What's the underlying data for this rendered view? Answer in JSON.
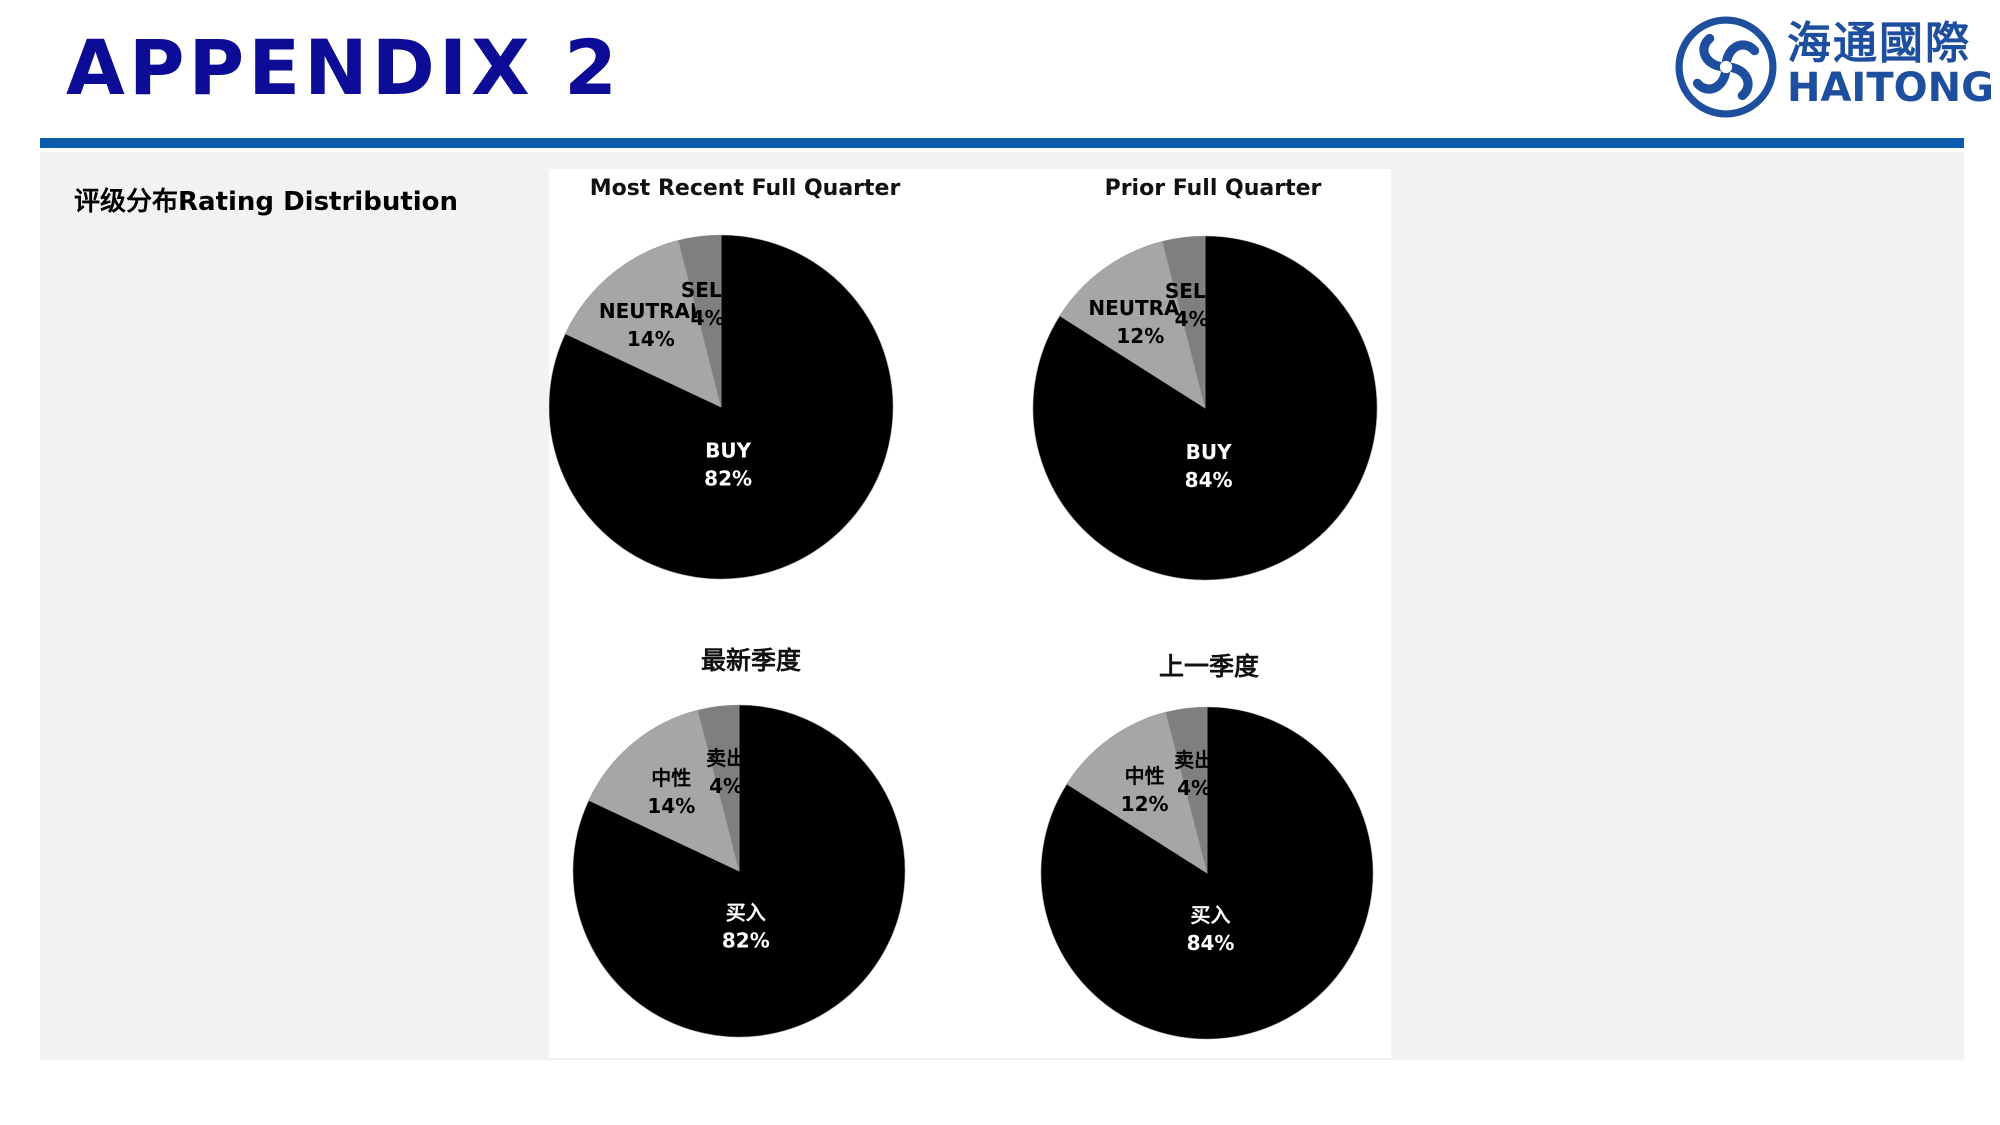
{
  "header": {
    "title": "APPENDIX 2",
    "logo": {
      "name_cn": "海通國際",
      "name_en": "HAITONG",
      "emblem": "haitong-swirl-emblem"
    },
    "brand_color": "#0c0c96",
    "accent_color": "#0b5cad"
  },
  "section": {
    "label": "评级分布Rating Distribution"
  },
  "chart_data": [
    {
      "type": "pie",
      "title": "Most Recent Full Quarter",
      "categories": [
        "BUY",
        "NEUTRAL",
        "SELL"
      ],
      "values": [
        82,
        14,
        4
      ],
      "value_labels": [
        "82%",
        "14%",
        "4%"
      ],
      "colors": [
        "#000000",
        "#a6a6a6",
        "#7f7f7f"
      ],
      "label_colors": [
        "#ffffff",
        "#000000",
        "#000000"
      ],
      "legend": "none"
    },
    {
      "type": "pie",
      "title": "Prior Full Quarter",
      "categories": [
        "BUY",
        "NEUTRAL",
        "SELL"
      ],
      "values": [
        84,
        12,
        4
      ],
      "value_labels": [
        "84%",
        "12%",
        "4%"
      ],
      "colors": [
        "#000000",
        "#a6a6a6",
        "#7f7f7f"
      ],
      "label_colors": [
        "#ffffff",
        "#000000",
        "#000000"
      ],
      "legend": "none"
    },
    {
      "type": "pie",
      "title": "最新季度",
      "categories": [
        "买入",
        "中性",
        "卖出"
      ],
      "values": [
        82,
        14,
        4
      ],
      "value_labels": [
        "82%",
        "14%",
        "4%"
      ],
      "colors": [
        "#000000",
        "#a6a6a6",
        "#7f7f7f"
      ],
      "label_colors": [
        "#ffffff",
        "#000000",
        "#000000"
      ],
      "legend": "none"
    },
    {
      "type": "pie",
      "title": "上一季度",
      "categories": [
        "买入",
        "中性",
        "卖出"
      ],
      "values": [
        84,
        12,
        4
      ],
      "value_labels": [
        "84%",
        "12%",
        "4%"
      ],
      "colors": [
        "#000000",
        "#a6a6a6",
        "#7f7f7f"
      ],
      "label_colors": [
        "#ffffff",
        "#000000",
        "#000000"
      ],
      "legend": "none"
    }
  ]
}
